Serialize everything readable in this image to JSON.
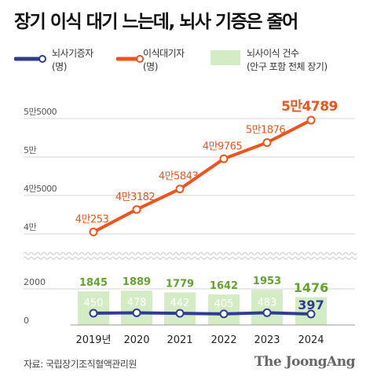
{
  "title": "장기 이식 대기 느는데, 뇌사 기증은 줄어",
  "legend": {
    "donors": [
      "뇌사기증자",
      "(명)"
    ],
    "waiting": [
      "이식대기자",
      "(명)"
    ],
    "transplants": [
      "뇌사이식 건수",
      "(안구 포함 전체 장기)"
    ]
  },
  "colors": {
    "donors": "#2f3d8f",
    "waiting": "#f0531c",
    "transplants": "#d4ecc4",
    "transplant_label": "#62a32e"
  },
  "chart_data": {
    "type": "line",
    "categories": [
      "2019년",
      "2020",
      "2021",
      "2022",
      "2023",
      "2024"
    ],
    "upper_y_ticks": [
      {
        "value": 40000,
        "label": "4만"
      },
      {
        "value": 45000,
        "label": "4만5000"
      },
      {
        "value": 50000,
        "label": "5만"
      },
      {
        "value": 55000,
        "label": "5만5000"
      }
    ],
    "lower_y_ticks": [
      {
        "value": 0,
        "label": "0"
      },
      {
        "value": 2000,
        "label": "2000"
      }
    ],
    "series": [
      {
        "name": "이식대기자",
        "values": [
          40253,
          43182,
          45843,
          49765,
          51876,
          54789
        ],
        "labels": [
          "4만253",
          "4만3182",
          "4만5843",
          "4만9765",
          "5만1876",
          "5만4789"
        ]
      },
      {
        "name": "뇌사이식 건수",
        "values": [
          1845,
          1889,
          1779,
          1642,
          1953,
          1476
        ],
        "labels": [
          "1845",
          "1889",
          "1779",
          "1642",
          "1953",
          "1476"
        ]
      },
      {
        "name": "뇌사기증자",
        "values": [
          450,
          478,
          442,
          405,
          483,
          397
        ],
        "labels": [
          "450",
          "478",
          "442",
          "405",
          "483",
          "397"
        ]
      }
    ]
  },
  "footer": {
    "source": "자료: 국립장기조직혈액관리원",
    "brand": "The JoongAng"
  }
}
